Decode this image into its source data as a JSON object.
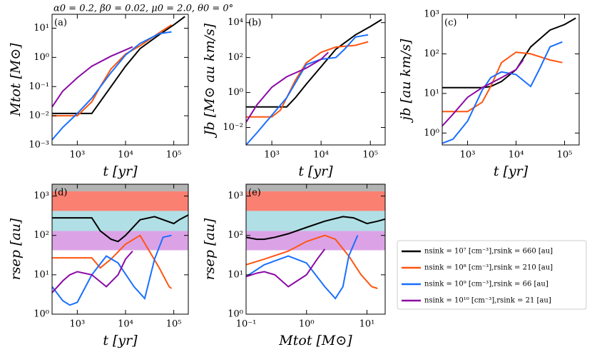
{
  "title": "α0 = 0.2,  β0 = 0.02,  μ0 = 2.0,  θ0 = 0°",
  "chart_data": [
    {
      "type": "line",
      "label": "(a)",
      "x_label": "t [yr]",
      "y_label": "Mtot [M⊙]",
      "log_x": true,
      "log_y": true,
      "xlim": [
        300,
        200000
      ],
      "ylim": [
        0.001,
        30
      ],
      "xticks": [
        {
          "value": 1000,
          "label": "10³"
        },
        {
          "value": 10000,
          "label": "10⁴"
        },
        {
          "value": 100000,
          "label": "10⁵"
        }
      ],
      "yticks": [
        {
          "value": 0.001,
          "label": "10⁻³"
        },
        {
          "value": 0.01,
          "label": "10⁻²"
        },
        {
          "value": 0.1,
          "label": "10⁻¹"
        },
        {
          "value": 1,
          "label": "10⁰"
        },
        {
          "value": 10,
          "label": "10¹"
        }
      ],
      "series": [
        {
          "name": "nsink = 10⁷ [cm⁻³],rsink = 660 [au]",
          "color": "#000000",
          "x": [
            300,
            1000,
            2000,
            5000,
            10000,
            20000,
            50000,
            100000,
            170000
          ],
          "values": [
            0.012,
            0.012,
            0.012,
            0.1,
            0.5,
            2,
            6,
            13,
            25
          ]
        },
        {
          "name": "nsink = 10⁸ [cm⁻³],rsink = 210 [au]",
          "color": "#ff5511",
          "x": [
            300,
            1000,
            2000,
            3000,
            5000,
            10000,
            20000,
            50000,
            90000
          ],
          "values": [
            0.01,
            0.01,
            0.03,
            0.1,
            0.4,
            1.3,
            2.5,
            7,
            13
          ]
        },
        {
          "name": "nsink = 10⁹ [cm⁻³],rsink = 66 [au]",
          "color": "#1a6fff",
          "x": [
            300,
            500,
            1000,
            2000,
            5000,
            10000,
            20000,
            50000,
            90000
          ],
          "values": [
            0.0015,
            0.004,
            0.012,
            0.04,
            0.3,
            1.2,
            3,
            6.5,
            7.5
          ]
        },
        {
          "name": "nsink = 10¹⁰ [cm⁻³],rsink = 21 [au]",
          "color": "#8b0aa5",
          "x": [
            300,
            500,
            1000,
            2000,
            5000,
            10000,
            14000
          ],
          "values": [
            0.02,
            0.07,
            0.2,
            0.5,
            1.1,
            1.8,
            2.3
          ]
        }
      ]
    },
    {
      "type": "line",
      "label": "(b)",
      "x_label": "t [yr]",
      "y_label": "Jb [M⊙ au km/s]",
      "log_x": true,
      "log_y": true,
      "xlim": [
        300,
        200000
      ],
      "ylim": [
        0.001,
        30000
      ],
      "xticks": [
        {
          "value": 1000,
          "label": "10³"
        },
        {
          "value": 10000,
          "label": "10⁴"
        },
        {
          "value": 100000,
          "label": "10⁵"
        }
      ],
      "yticks": [
        {
          "value": 0.01,
          "label": "10⁻²"
        },
        {
          "value": 1,
          "label": "10⁰"
        },
        {
          "value": 100,
          "label": "10²"
        },
        {
          "value": 10000,
          "label": "10⁴"
        }
      ],
      "series": [
        {
          "name": "nsink = 10⁷ [cm⁻³],rsink = 660 [au]",
          "color": "#000000",
          "x": [
            300,
            2000,
            3000,
            5000,
            10000,
            20000,
            50000,
            100000,
            170000
          ],
          "values": [
            0.15,
            0.15,
            0.5,
            3,
            30,
            300,
            2000,
            6000,
            15000
          ]
        },
        {
          "name": "nsink = 10⁸ [cm⁻³],rsink = 210 [au]",
          "color": "#ff5511",
          "x": [
            300,
            1000,
            1500,
            2000,
            3000,
            5000,
            10000,
            20000,
            50000,
            90000
          ],
          "values": [
            0.04,
            0.04,
            0.1,
            0.5,
            5,
            50,
            200,
            400,
            500,
            800
          ]
        },
        {
          "name": "nsink = 10⁹ [cm⁻³],rsink = 66 [au]",
          "color": "#1a6fff",
          "x": [
            300,
            500,
            1000,
            2000,
            5000,
            10000,
            20000,
            30000,
            50000,
            90000
          ],
          "values": [
            0.001,
            0.005,
            0.05,
            0.5,
            40,
            80,
            100,
            300,
            1500,
            2000
          ]
        },
        {
          "name": "nsink = 10¹⁰ [cm⁻³],rsink = 21 [au]",
          "color": "#8b0aa5",
          "x": [
            300,
            500,
            1000,
            2000,
            5000,
            10000,
            14000
          ],
          "values": [
            0.02,
            0.2,
            2,
            8,
            25,
            80,
            200
          ]
        }
      ]
    },
    {
      "type": "line",
      "label": "(c)",
      "x_label": "t [yr]",
      "y_label": "jb [au km/s]",
      "log_x": true,
      "log_y": true,
      "xlim": [
        300,
        200000
      ],
      "ylim": [
        0.5,
        1000
      ],
      "xticks": [
        {
          "value": 1000,
          "label": "10³"
        },
        {
          "value": 10000,
          "label": "10⁴"
        },
        {
          "value": 100000,
          "label": "10⁵"
        }
      ],
      "yticks": [
        {
          "value": 1,
          "label": "10⁰"
        },
        {
          "value": 10,
          "label": "10¹"
        },
        {
          "value": 100,
          "label": "10²"
        },
        {
          "value": 1000,
          "label": "10³"
        }
      ],
      "series": [
        {
          "name": "nsink = 10⁷ [cm⁻³],rsink = 660 [au]",
          "color": "#000000",
          "x": [
            300,
            2000,
            3000,
            5000,
            10000,
            20000,
            50000,
            100000,
            170000
          ],
          "values": [
            14,
            14,
            15,
            20,
            40,
            150,
            400,
            550,
            800
          ]
        },
        {
          "name": "nsink = 10⁸ [cm⁻³],rsink = 210 [au]",
          "color": "#ff5511",
          "x": [
            300,
            1000,
            2000,
            3000,
            5000,
            10000,
            20000,
            50000,
            90000
          ],
          "values": [
            3.5,
            3.5,
            6,
            15,
            60,
            110,
            100,
            70,
            60
          ]
        },
        {
          "name": "nsink = 10⁹ [cm⁻³],rsink = 66 [au]",
          "color": "#1a6fff",
          "x": [
            300,
            500,
            1000,
            2000,
            3000,
            5000,
            10000,
            20000,
            30000,
            50000,
            90000
          ],
          "values": [
            0.55,
            0.7,
            2,
            12,
            25,
            35,
            30,
            15,
            40,
            150,
            200
          ]
        },
        {
          "name": "nsink = 10¹⁰ [cm⁻³],rsink = 21 [au]",
          "color": "#8b0aa5",
          "x": [
            300,
            500,
            1000,
            2000,
            5000,
            10000,
            14000
          ],
          "values": [
            1.5,
            3,
            8,
            14,
            25,
            40,
            70
          ]
        }
      ]
    },
    {
      "type": "line",
      "label": "(d)",
      "x_label": "t [yr]",
      "y_label": "rsep [au]",
      "log_x": true,
      "log_y": true,
      "xlim": [
        300,
        200000
      ],
      "ylim": [
        1,
        2000
      ],
      "xticks": [
        {
          "value": 1000,
          "label": "10³"
        },
        {
          "value": 10000,
          "label": "10⁴"
        },
        {
          "value": 100000,
          "label": "10⁵"
        }
      ],
      "yticks": [
        {
          "value": 1,
          "label": "10⁰"
        },
        {
          "value": 10,
          "label": "10¹"
        },
        {
          "value": 100,
          "label": "10²"
        },
        {
          "value": 1000,
          "label": "10³"
        }
      ],
      "bands": [
        {
          "range": [
            42,
            130
          ],
          "color": "#dba3e6"
        },
        {
          "range": [
            130,
            420
          ],
          "color": "#b0dfe5"
        },
        {
          "range": [
            420,
            1320
          ],
          "color": "#fa8072"
        },
        {
          "range": [
            1320,
            2000
          ],
          "color": "#b3b3b3"
        }
      ],
      "series": [
        {
          "name": "nsink = 10⁷ [cm⁻³],rsink = 660 [au]",
          "color": "#000000",
          "x": [
            300,
            1000,
            2000,
            3000,
            5000,
            7000,
            10000,
            20000,
            40000,
            100000,
            130000,
            200000
          ],
          "values": [
            280,
            280,
            280,
            130,
            80,
            70,
            100,
            250,
            300,
            200,
            250,
            330
          ]
        },
        {
          "name": "nsink = 10⁸ [cm⁻³],rsink = 210 [au]",
          "color": "#ff5511",
          "x": [
            300,
            1000,
            2000,
            3000,
            5000,
            10000,
            20000,
            50000,
            80000,
            90000
          ],
          "values": [
            27,
            27,
            27,
            15,
            25,
            60,
            100,
            15,
            5,
            4.5
          ]
        },
        {
          "name": "nsink = 10⁹ [cm⁻³],rsink = 66 [au]",
          "color": "#1a6fff",
          "x": [
            300,
            500,
            700,
            1000,
            2000,
            4000,
            7000,
            15000,
            25000,
            40000,
            60000,
            90000
          ],
          "values": [
            5,
            2.2,
            1.7,
            2,
            10,
            30,
            20,
            5,
            2.5,
            25,
            90,
            100
          ]
        },
        {
          "name": "nsink = 10¹⁰ [cm⁻³],rsink = 21 [au]",
          "color": "#8b0aa5",
          "x": [
            300,
            500,
            700,
            1000,
            2000,
            4000,
            7000,
            10000,
            14000
          ],
          "values": [
            3.5,
            7,
            10,
            12,
            10,
            5,
            10,
            25,
            40
          ]
        }
      ]
    },
    {
      "type": "line",
      "label": "(e)",
      "x_label": "Mtot [M⊙]",
      "y_label": "rsep [au]",
      "log_x": true,
      "log_y": true,
      "xlim": [
        0.1,
        20
      ],
      "ylim": [
        1,
        2000
      ],
      "xticks": [
        {
          "value": 0.1,
          "label": "10⁻¹"
        },
        {
          "value": 1,
          "label": "10⁰"
        },
        {
          "value": 10,
          "label": "10¹"
        }
      ],
      "yticks": [
        {
          "value": 1,
          "label": "10⁰"
        },
        {
          "value": 10,
          "label": "10¹"
        },
        {
          "value": 100,
          "label": "10²"
        },
        {
          "value": 1000,
          "label": "10³"
        }
      ],
      "bands": [
        {
          "range": [
            42,
            130
          ],
          "color": "#dba3e6"
        },
        {
          "range": [
            130,
            420
          ],
          "color": "#b0dfe5"
        },
        {
          "range": [
            420,
            1320
          ],
          "color": "#fa8072"
        },
        {
          "range": [
            1320,
            2000
          ],
          "color": "#b3b3b3"
        }
      ],
      "series": [
        {
          "name": "nsink = 10⁷ [cm⁻³],rsink = 660 [au]",
          "color": "#000000",
          "x": [
            0.1,
            0.15,
            0.2,
            0.3,
            0.5,
            1,
            2,
            4,
            6,
            10,
            15,
            20
          ],
          "values": [
            90,
            80,
            80,
            90,
            110,
            160,
            230,
            300,
            280,
            200,
            230,
            260
          ]
        },
        {
          "name": "nsink = 10⁸ [cm⁻³],rsink = 210 [au]",
          "color": "#ff5511",
          "x": [
            0.1,
            0.2,
            0.5,
            1,
            2,
            3,
            5,
            8,
            12,
            15
          ],
          "values": [
            18,
            25,
            40,
            70,
            100,
            80,
            30,
            10,
            5,
            4.5
          ]
        },
        {
          "name": "nsink = 10⁹ [cm⁻³],rsink = 66 [au]",
          "color": "#1a6fff",
          "x": [
            0.1,
            0.2,
            0.5,
            1,
            2,
            3,
            4,
            5,
            7
          ],
          "values": [
            9,
            18,
            30,
            20,
            5,
            2.5,
            5,
            30,
            100
          ]
        },
        {
          "name": "nsink = 10¹⁰ [cm⁻³],rsink = 21 [au]",
          "color": "#8b0aa5",
          "x": [
            0.1,
            0.15,
            0.2,
            0.3,
            0.5,
            1,
            1.5,
            2
          ],
          "values": [
            9,
            11,
            12,
            10,
            5,
            10,
            25,
            45
          ]
        }
      ]
    }
  ]
}
